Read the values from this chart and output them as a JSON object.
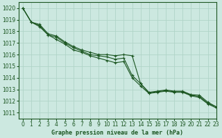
{
  "title": "Graphe pression niveau de la mer (hPa)",
  "bg_color": "#cce8e0",
  "grid_color": "#b0d4c8",
  "line_color": "#1a5520",
  "xlim": [
    -0.5,
    23
  ],
  "ylim": [
    1010.5,
    1020.5
  ],
  "yticks": [
    1011,
    1012,
    1013,
    1014,
    1015,
    1016,
    1017,
    1018,
    1019,
    1020
  ],
  "xticks": [
    0,
    1,
    2,
    3,
    4,
    5,
    6,
    7,
    8,
    9,
    10,
    11,
    12,
    13,
    14,
    15,
    16,
    17,
    18,
    19,
    20,
    21,
    22,
    23
  ],
  "series": [
    [
      1020.0,
      1018.8,
      1018.5,
      1017.7,
      1017.5,
      1017.0,
      1016.6,
      1016.3,
      1016.0,
      1015.9,
      1015.8,
      1015.6,
      1015.7,
      1014.2,
      1013.5,
      1012.7,
      1012.8,
      1012.9,
      1012.8,
      1012.8,
      1012.5,
      1012.4,
      1011.8,
      1011.5
    ],
    [
      1020.0,
      1018.8,
      1018.6,
      1017.8,
      1017.6,
      1017.1,
      1016.7,
      1016.4,
      1016.2,
      1016.0,
      1016.0,
      1015.9,
      1016.0,
      1015.9,
      1013.5,
      1012.75,
      1012.85,
      1012.95,
      1012.85,
      1012.85,
      1012.55,
      1012.5,
      1011.9,
      1011.5
    ],
    [
      1020.0,
      1018.8,
      1018.4,
      1017.7,
      1017.3,
      1016.9,
      1016.4,
      1016.2,
      1015.9,
      1015.7,
      1015.5,
      1015.3,
      1015.4,
      1014.0,
      1013.3,
      1012.65,
      1012.75,
      1012.85,
      1012.75,
      1012.75,
      1012.45,
      1012.3,
      1011.75,
      1011.4
    ]
  ],
  "xlabel_fontsize": 6.0,
  "tick_fontsize": 5.5
}
